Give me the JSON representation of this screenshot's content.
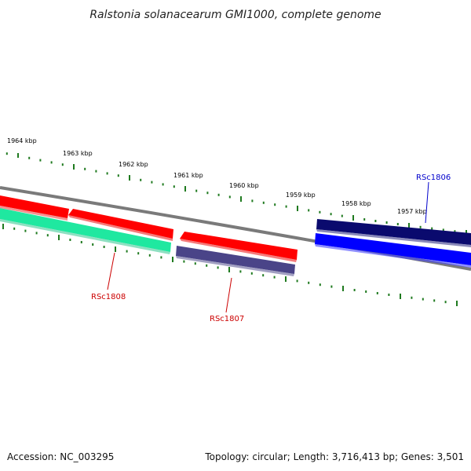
{
  "title": "Ralstonia solanacearum GMI1000, complete genome",
  "footer": {
    "accession": "Accession: NC_003295",
    "summary": "Topology: circular; Length: 3,716,413 bp; Genes: 3,501"
  },
  "ticks": [
    "1964 kbp",
    "1963 kbp",
    "1962 kbp",
    "1961 kbp",
    "1960 kbp",
    "1959 kbp",
    "1958 kbp",
    "1957 kbp"
  ],
  "gene_labels": {
    "rsc1806": "RSc1806",
    "rsc1807": "RSc1807",
    "rsc1808": "RSc1808"
  },
  "colors": {
    "backbone": "#808080",
    "tick": "#1f7a1f",
    "forward_cds": "#ff0000",
    "cds_dark_blue": "#0a0a6e",
    "cds_blue": "#0000ff",
    "cds_teal": "#1fe8a0",
    "cds_slate": "#4a4488",
    "label_red": "#cc0000",
    "label_blue": "#0000cc"
  }
}
